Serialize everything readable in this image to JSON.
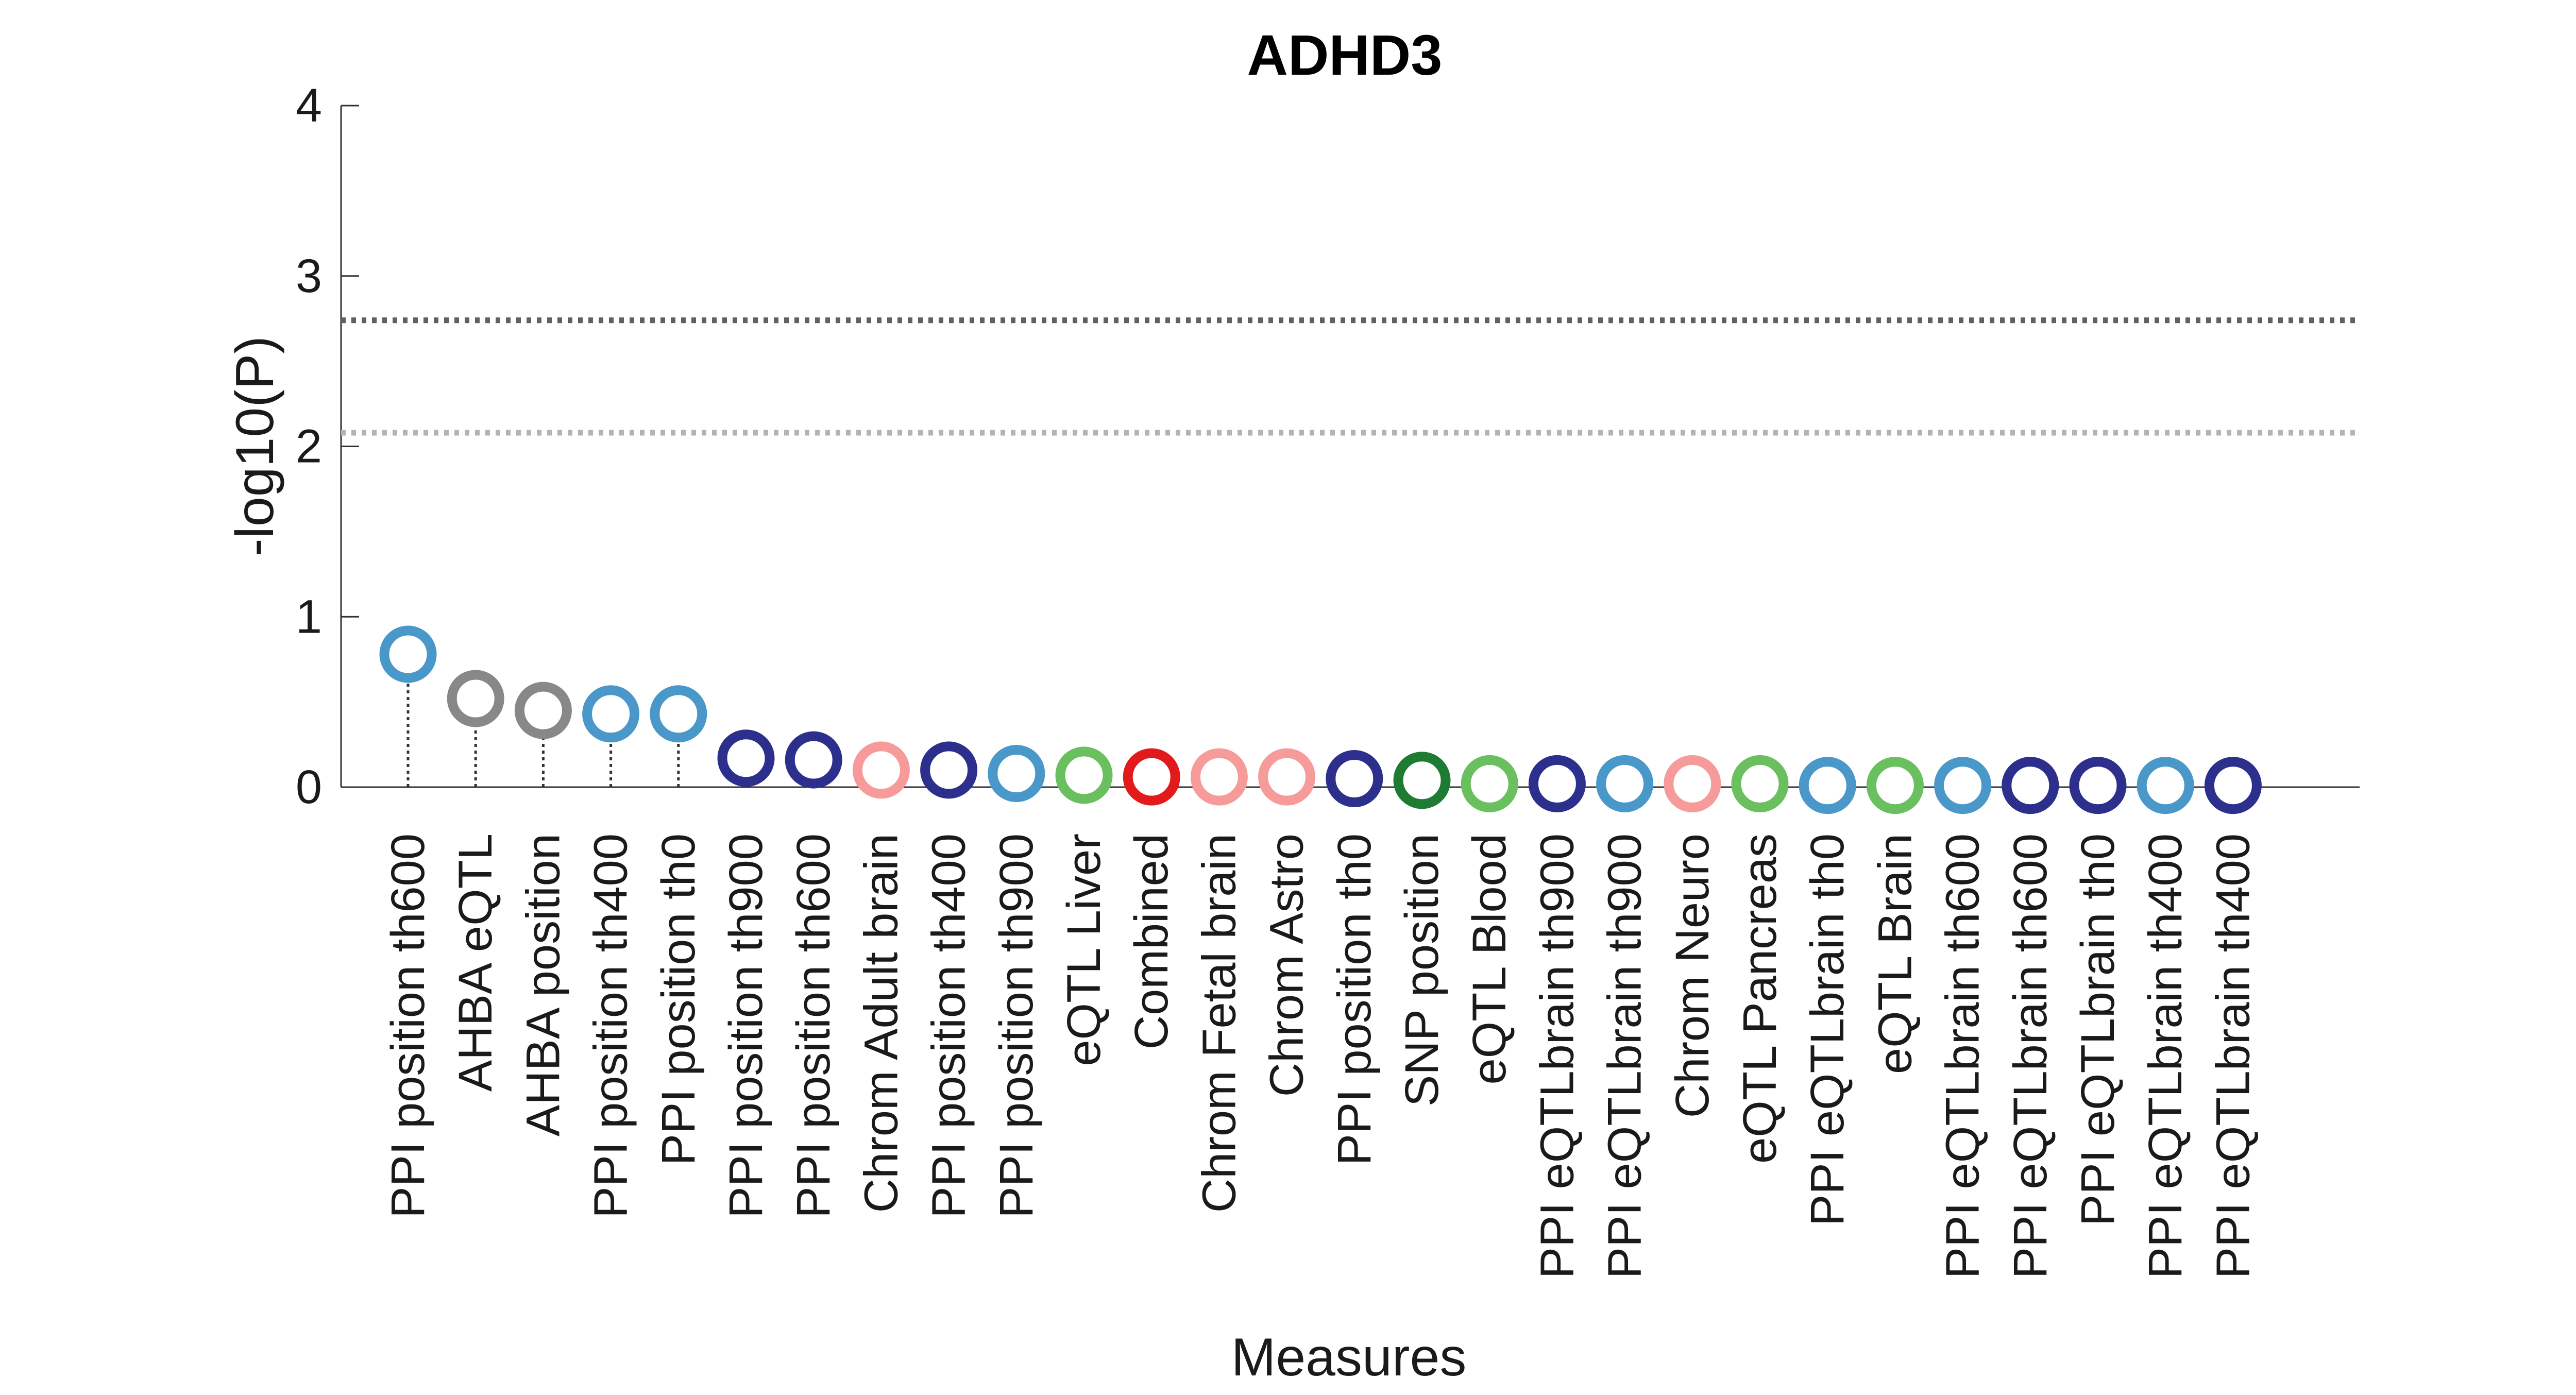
{
  "chart_data": {
    "type": "scatter",
    "subtype": "lollipop",
    "title": "ADHD3",
    "xlabel": "Measures",
    "ylabel": "-log10(P)",
    "ylim": [
      0,
      4
    ],
    "yticks": [
      0,
      1,
      2,
      3,
      4
    ],
    "grid": false,
    "thresholds": [
      {
        "name": "threshold-strict",
        "value": 2.74,
        "color": "#606060",
        "style": "dotted"
      },
      {
        "name": "threshold-lenient",
        "value": 2.08,
        "color": "#b3b3b3",
        "style": "dotted"
      }
    ],
    "points": [
      {
        "label": "PPI position th600",
        "value": 0.78,
        "color": "#4a98c9"
      },
      {
        "label": "AHBA eQTL",
        "value": 0.52,
        "color": "#888888"
      },
      {
        "label": "AHBA position",
        "value": 0.45,
        "color": "#888888"
      },
      {
        "label": "PPI position th400",
        "value": 0.43,
        "color": "#4a98c9"
      },
      {
        "label": "PPI position th0",
        "value": 0.43,
        "color": "#4a98c9"
      },
      {
        "label": "PPI position th900",
        "value": 0.17,
        "color": "#2c2f8c"
      },
      {
        "label": "PPI position th600",
        "value": 0.16,
        "color": "#2c2f8c"
      },
      {
        "label": "Chrom Adult brain",
        "value": 0.1,
        "color": "#f79a9a"
      },
      {
        "label": "PPI position th400",
        "value": 0.1,
        "color": "#2c2f8c"
      },
      {
        "label": "PPI position th900",
        "value": 0.08,
        "color": "#4a98c9"
      },
      {
        "label": "eQTL Liver",
        "value": 0.07,
        "color": "#6abf5f"
      },
      {
        "label": "Combined",
        "value": 0.06,
        "color": "#e31a1c"
      },
      {
        "label": "Chrom Fetal brain",
        "value": 0.06,
        "color": "#f79a9a"
      },
      {
        "label": "Chrom Astro",
        "value": 0.06,
        "color": "#f79a9a"
      },
      {
        "label": "PPI position th0",
        "value": 0.05,
        "color": "#2c2f8c"
      },
      {
        "label": "SNP position",
        "value": 0.04,
        "color": "#1f7a32"
      },
      {
        "label": "eQTL Blood",
        "value": 0.02,
        "color": "#6abf5f"
      },
      {
        "label": "PPI eQTLbrain th900",
        "value": 0.02,
        "color": "#2c2f8c"
      },
      {
        "label": "PPI eQTLbrain th900",
        "value": 0.02,
        "color": "#4a98c9"
      },
      {
        "label": "Chrom Neuro",
        "value": 0.02,
        "color": "#f79a9a"
      },
      {
        "label": "eQTL Pancreas",
        "value": 0.02,
        "color": "#6abf5f"
      },
      {
        "label": "PPI eQTLbrain th0",
        "value": 0.01,
        "color": "#4a98c9"
      },
      {
        "label": "eQTL Brain",
        "value": 0.01,
        "color": "#6abf5f"
      },
      {
        "label": "PPI eQTLbrain th600",
        "value": 0.01,
        "color": "#4a98c9"
      },
      {
        "label": "PPI eQTLbrain th600",
        "value": 0.01,
        "color": "#2c2f8c"
      },
      {
        "label": "PPI eQTLbrain th0",
        "value": 0.01,
        "color": "#2c2f8c"
      },
      {
        "label": "PPI eQTLbrain th400",
        "value": 0.01,
        "color": "#4a98c9"
      },
      {
        "label": "PPI eQTLbrain th400",
        "value": 0.01,
        "color": "#2c2f8c"
      }
    ]
  }
}
